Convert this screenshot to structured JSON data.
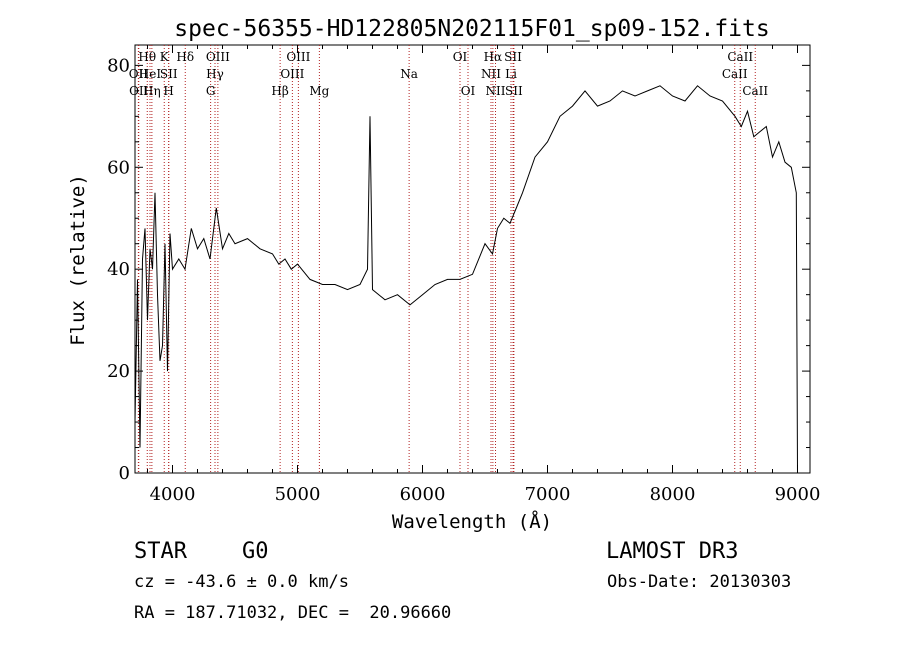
{
  "chart_data": {
    "type": "line",
    "title": "spec-56355-HD122805N202115F01_sp09-152.fits",
    "xlabel": "Wavelength (Å)",
    "ylabel": "Flux (relative)",
    "xlim": [
      3700,
      9100
    ],
    "ylim": [
      0,
      84
    ],
    "xticks": [
      4000,
      5000,
      6000,
      7000,
      8000,
      9000
    ],
    "yticks": [
      0,
      20,
      40,
      60,
      80
    ],
    "grid": false,
    "line_color": "#000000",
    "marker_color": "#b22222",
    "series": [
      {
        "x": [
          3700,
          3720,
          3740,
          3760,
          3780,
          3800,
          3820,
          3840,
          3860,
          3880,
          3900,
          3920,
          3940,
          3960,
          3980,
          4000,
          4050,
          4100,
          4150,
          4200,
          4250,
          4300,
          4350,
          4400,
          4450,
          4500,
          4600,
          4700,
          4800,
          4850,
          4900,
          4950,
          5000,
          5100,
          5200,
          5300,
          5400,
          5500,
          5560,
          5580,
          5600,
          5700,
          5800,
          5900,
          6000,
          6100,
          6200,
          6300,
          6400,
          6500,
          6560,
          6600,
          6650,
          6700,
          6750,
          6800,
          6900,
          7000,
          7100,
          7200,
          7300,
          7400,
          7500,
          7600,
          7700,
          7800,
          7900,
          8000,
          8100,
          8200,
          8300,
          8400,
          8500,
          8550,
          8600,
          8650,
          8700,
          8750,
          8800,
          8850,
          8900,
          8950,
          8990,
          9000
        ],
        "y": [
          10,
          38,
          5,
          42,
          48,
          30,
          44,
          40,
          55,
          35,
          22,
          25,
          45,
          20,
          47,
          40,
          42,
          40,
          48,
          44,
          46,
          42,
          52,
          44,
          47,
          45,
          46,
          44,
          43,
          41,
          42,
          40,
          41,
          38,
          37,
          37,
          36,
          37,
          40,
          70,
          36,
          34,
          35,
          33,
          35,
          37,
          38,
          38,
          39,
          45,
          43,
          48,
          50,
          49,
          52,
          55,
          62,
          65,
          70,
          72,
          75,
          72,
          73,
          75,
          74,
          75,
          76,
          74,
          73,
          76,
          74,
          73,
          70,
          68,
          71,
          66,
          67,
          68,
          62,
          65,
          61,
          60,
          55,
          0
        ]
      }
    ],
    "lines": [
      {
        "name": "OII",
        "x": 3727,
        "tier": 1
      },
      {
        "name": "Hθ",
        "x": 3798,
        "tier": 0
      },
      {
        "name": "OII",
        "x": 3730,
        "tier": 2
      },
      {
        "name": "HeI",
        "x": 3820,
        "tier": 1
      },
      {
        "name": "Hη",
        "x": 3835,
        "tier": 2
      },
      {
        "name": "K",
        "x": 3934,
        "tier": 0
      },
      {
        "name": "SII",
        "x": 3970,
        "tier": 1
      },
      {
        "name": "H",
        "x": 3969,
        "tier": 2
      },
      {
        "name": "Hδ",
        "x": 4102,
        "tier": 0
      },
      {
        "name": "OIII",
        "x": 4363,
        "tier": 0
      },
      {
        "name": "Hγ",
        "x": 4340,
        "tier": 1
      },
      {
        "name": "G",
        "x": 4305,
        "tier": 2
      },
      {
        "name": "OIII",
        "x": 5007,
        "tier": 0
      },
      {
        "name": "OIII",
        "x": 4959,
        "tier": 1
      },
      {
        "name": "Hβ",
        "x": 4861,
        "tier": 2
      },
      {
        "name": "Mg",
        "x": 5175,
        "tier": 2
      },
      {
        "name": "Na",
        "x": 5893,
        "tier": 1
      },
      {
        "name": "OI",
        "x": 6300,
        "tier": 0
      },
      {
        "name": "OI",
        "x": 6364,
        "tier": 2
      },
      {
        "name": "Hα",
        "x": 6563,
        "tier": 0
      },
      {
        "name": "SII",
        "x": 6724,
        "tier": 0
      },
      {
        "name": "NII",
        "x": 6548,
        "tier": 1
      },
      {
        "name": "Li",
        "x": 6708,
        "tier": 1
      },
      {
        "name": "NII",
        "x": 6584,
        "tier": 2
      },
      {
        "name": "SII",
        "x": 6731,
        "tier": 2
      },
      {
        "name": "CaII",
        "x": 8542,
        "tier": 0
      },
      {
        "name": "CaII",
        "x": 8498,
        "tier": 1
      },
      {
        "name": "CaII",
        "x": 8662,
        "tier": 2
      }
    ]
  },
  "info": {
    "class_label": "STAR",
    "subclass": "G0",
    "survey": "LAMOST DR3",
    "cz": "cz = -43.6 ± 0.0 km/s",
    "obs_date": "Obs-Date: 20130303",
    "coords": "RA = 187.71032, DEC =  20.96660"
  }
}
